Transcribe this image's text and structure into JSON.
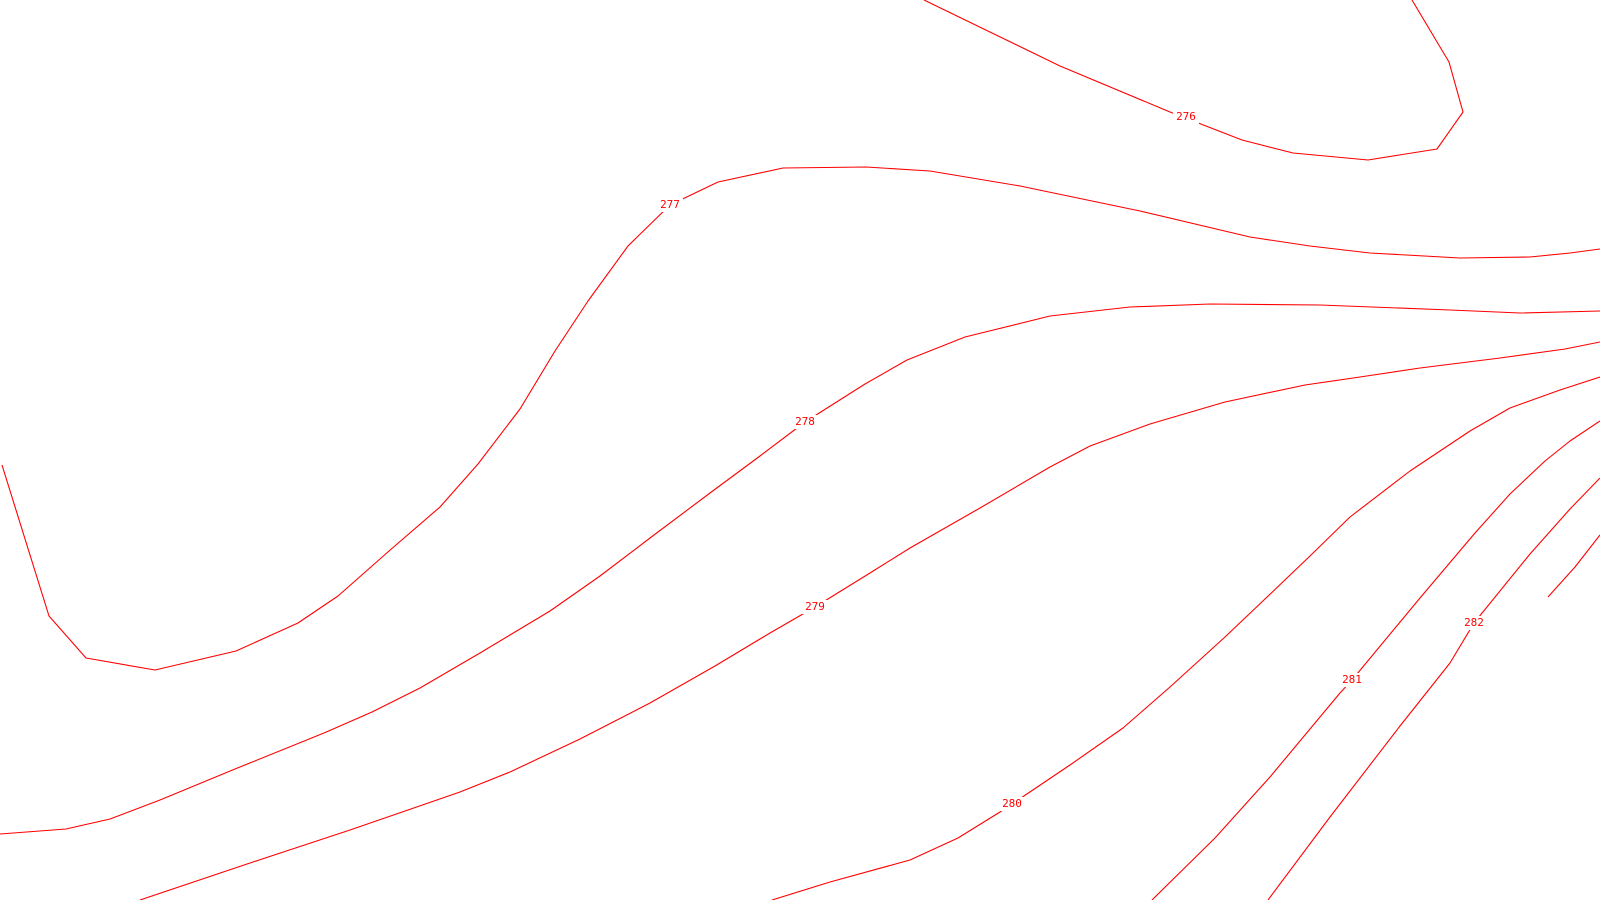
{
  "map": {
    "type": "contour-lines",
    "line_color": "#ff0000",
    "background_color": "#ffffff",
    "contours": [
      {
        "id": "276",
        "label": "276"
      },
      {
        "id": "277",
        "label": "277"
      },
      {
        "id": "278",
        "label": "278"
      },
      {
        "id": "279",
        "label": "279"
      },
      {
        "id": "280",
        "label": "280"
      },
      {
        "id": "281",
        "label": "281"
      },
      {
        "id": "282",
        "label": "282"
      },
      {
        "id": "283",
        "label": ""
      }
    ]
  }
}
